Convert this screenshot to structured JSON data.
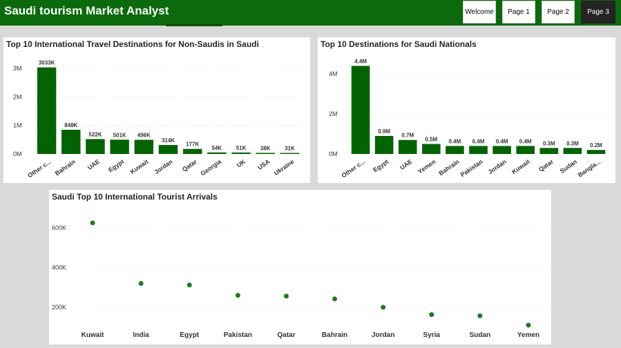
{
  "header": {
    "title": "Saudi tourism Market Analyst",
    "nav": [
      "Welcome",
      "Page 1",
      "Page 2",
      "Page 3"
    ],
    "active_nav": "Page 3"
  },
  "colors": {
    "header_bg": "#0b6a0b",
    "bar": "#006400",
    "dot": "#1e7b1e",
    "active_btn": "#252423"
  },
  "chart_data": [
    {
      "type": "bar",
      "title": "Top 10 International Travel Destinations for Non-Saudis in Saudi",
      "categories": [
        "Other c...",
        "Bahrain",
        "UAE",
        "Egypt",
        "Kuwait",
        "Jordan",
        "Qatar",
        "Georgia",
        "UK",
        "USA",
        "Ukraine"
      ],
      "values": [
        3033000,
        848000,
        522000,
        501000,
        496000,
        314000,
        177000,
        54000,
        51000,
        38000,
        31000
      ],
      "labels": [
        "3033K",
        "848K",
        "522K",
        "501K",
        "496K",
        "314K",
        "177K",
        "54K",
        "51K",
        "38K",
        "31K"
      ],
      "yticks": [
        "0M",
        "1M",
        "2M",
        "3M"
      ],
      "ylim": [
        0,
        3000000
      ],
      "grid": true
    },
    {
      "type": "bar",
      "title": "Top 10 Destinations for Saudi Nationals",
      "categories": [
        "Other c...",
        "Egypt",
        "UAE",
        "Yemen",
        "Bahrain",
        "Pakistan",
        "Jordan",
        "Kuwait",
        "Qatar",
        "Sudan",
        "Bangla..."
      ],
      "values": [
        4400000,
        900000,
        700000,
        500000,
        400000,
        400000,
        400000,
        400000,
        300000,
        300000,
        200000
      ],
      "labels": [
        "4.4M",
        "0.9M",
        "0.7M",
        "0.5M",
        "0.4M",
        "0.4M",
        "0.4M",
        "0.4M",
        "0.3M",
        "0.3M",
        "0.2M"
      ],
      "yticks": [
        "0M",
        "2M",
        "4M"
      ],
      "ylim": [
        0,
        4000000
      ],
      "grid": true
    },
    {
      "type": "scatter",
      "title": "Saudi Top 10 International Tourist Arrivals",
      "categories": [
        "Kuwait",
        "India",
        "Egypt",
        "Pakistan",
        "Qatar",
        "Bahrain",
        "Jordan",
        "Syria",
        "Sudan",
        "Yemen"
      ],
      "values": [
        625000,
        320000,
        312000,
        260000,
        256000,
        242000,
        200000,
        163000,
        157000,
        110000
      ],
      "yticks": [
        "200K",
        "400K",
        "600K"
      ],
      "ylim": [
        200000,
        600000
      ],
      "grid": true
    }
  ]
}
